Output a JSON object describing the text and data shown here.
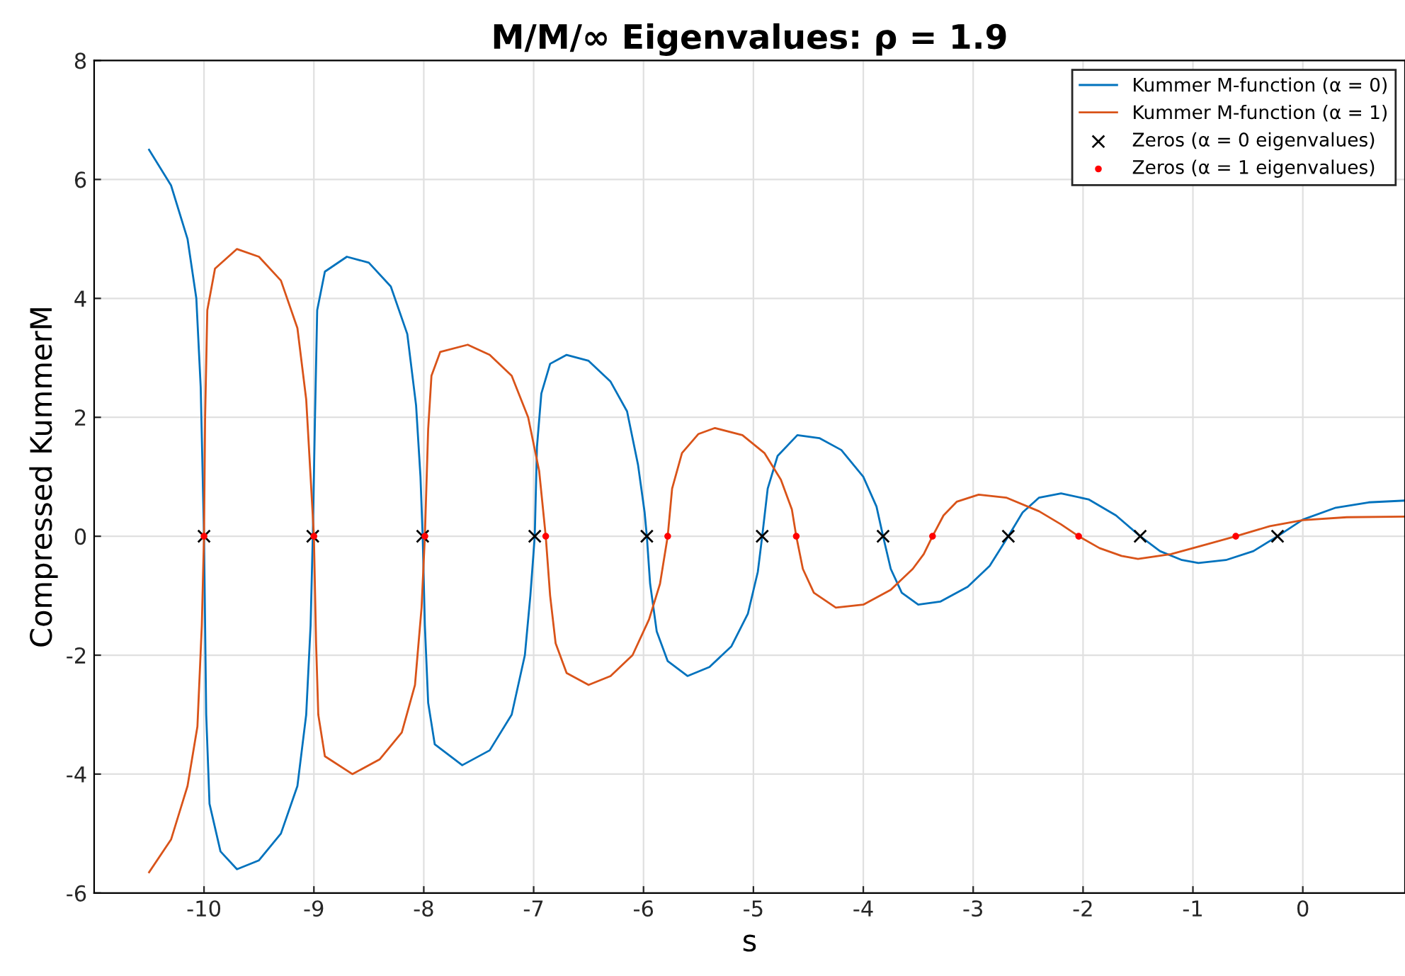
{
  "chart_data": {
    "type": "line",
    "title": "M/M/∞ Eigenvalues: ρ = 1.9",
    "xlabel": "s",
    "ylabel": "Compressed KummerM",
    "xlim": [
      -11,
      0.93
    ],
    "ylim": [
      -6,
      8
    ],
    "xticks": [
      -10,
      -9,
      -8,
      -7,
      -6,
      -5,
      -4,
      -3,
      -2,
      -1,
      0
    ],
    "yticks": [
      -6,
      -4,
      -2,
      0,
      2,
      4,
      6,
      8
    ],
    "grid": true,
    "legend": "top right",
    "series": [
      {
        "name": "Kummer M-function (α = 0)",
        "color": "#0072bd",
        "marker": "none",
        "x": [
          -10.5,
          -10.3,
          -10.15,
          -10.07,
          -10.03,
          -10,
          -9.98,
          -9.95,
          -9.85,
          -9.7,
          -9.5,
          -9.3,
          -9.15,
          -9.07,
          -9.03,
          -9.01,
          -8.99,
          -8.97,
          -8.9,
          -8.7,
          -8.5,
          -8.3,
          -8.15,
          -8.07,
          -8.03,
          -8.01,
          -7.99,
          -7.96,
          -7.9,
          -7.65,
          -7.4,
          -7.2,
          -7.08,
          -7.03,
          -6.99,
          -6.97,
          -6.93,
          -6.85,
          -6.7,
          -6.5,
          -6.3,
          -6.15,
          -6.05,
          -5.99,
          -5.97,
          -5.94,
          -5.88,
          -5.78,
          -5.6,
          -5.4,
          -5.2,
          -5.05,
          -4.96,
          -4.92,
          -4.87,
          -4.78,
          -4.6,
          -4.4,
          -4.2,
          -4.0,
          -3.88,
          -3.82,
          -3.75,
          -3.65,
          -3.5,
          -3.3,
          -3.05,
          -2.85,
          -2.68,
          -2.55,
          -2.4,
          -2.2,
          -1.95,
          -1.7,
          -1.48,
          -1.3,
          -1.1,
          -0.95,
          -0.7,
          -0.45,
          -0.23,
          0.0,
          0.3,
          0.6,
          0.93
        ],
        "values": [
          6.5,
          5.9,
          5.0,
          4.0,
          2.5,
          0,
          -3.0,
          -4.5,
          -5.3,
          -5.6,
          -5.45,
          -5.0,
          -4.2,
          -3.0,
          -1.5,
          0,
          2,
          3.8,
          4.45,
          4.7,
          4.6,
          4.2,
          3.4,
          2.2,
          1.0,
          0,
          -1.5,
          -2.8,
          -3.5,
          -3.85,
          -3.6,
          -3.0,
          -2.0,
          -1.0,
          0,
          1.5,
          2.4,
          2.9,
          3.05,
          2.95,
          2.6,
          2.1,
          1.2,
          0.4,
          0,
          -0.8,
          -1.6,
          -2.1,
          -2.35,
          -2.2,
          -1.85,
          -1.3,
          -0.6,
          0,
          0.8,
          1.35,
          1.7,
          1.65,
          1.45,
          1.0,
          0.5,
          0,
          -0.55,
          -0.95,
          -1.15,
          -1.1,
          -0.85,
          -0.5,
          0,
          0.4,
          0.65,
          0.72,
          0.62,
          0.35,
          0,
          -0.25,
          -0.4,
          -0.45,
          -0.4,
          -0.25,
          0,
          0.28,
          0.48,
          0.57,
          0.6
        ]
      },
      {
        "name": "Kummer M-function (α = 1)",
        "color": "#d95319",
        "marker": "none",
        "x": [
          -10.5,
          -10.3,
          -10.15,
          -10.06,
          -10.02,
          -10,
          -9.99,
          -9.97,
          -9.9,
          -9.7,
          -9.5,
          -9.3,
          -9.15,
          -9.07,
          -9.03,
          -9.0,
          -8.98,
          -8.96,
          -8.9,
          -8.65,
          -8.4,
          -8.2,
          -8.08,
          -8.02,
          -7.99,
          -7.96,
          -7.93,
          -7.85,
          -7.6,
          -7.4,
          -7.2,
          -7.05,
          -6.95,
          -6.89,
          -6.85,
          -6.8,
          -6.7,
          -6.5,
          -6.3,
          -6.1,
          -5.95,
          -5.85,
          -5.78,
          -5.74,
          -5.65,
          -5.5,
          -5.35,
          -5.1,
          -4.9,
          -4.75,
          -4.65,
          -4.61,
          -4.55,
          -4.45,
          -4.25,
          -4.0,
          -3.75,
          -3.55,
          -3.45,
          -3.37,
          -3.27,
          -3.15,
          -2.95,
          -2.7,
          -2.4,
          -2.2,
          -2.04,
          -1.85,
          -1.65,
          -1.5,
          -1.2,
          -0.9,
          -0.61,
          -0.3,
          0.0,
          0.4,
          0.93
        ],
        "values": [
          -5.65,
          -5.1,
          -4.2,
          -3.2,
          -1.5,
          0,
          2.0,
          3.8,
          4.5,
          4.83,
          4.7,
          4.3,
          3.5,
          2.3,
          1.0,
          0,
          -1.8,
          -3.0,
          -3.7,
          -4.0,
          -3.75,
          -3.3,
          -2.5,
          -1.2,
          0,
          1.8,
          2.7,
          3.1,
          3.22,
          3.05,
          2.7,
          2.0,
          1.1,
          0,
          -1.0,
          -1.8,
          -2.3,
          -2.5,
          -2.35,
          -2.0,
          -1.4,
          -0.8,
          0,
          0.8,
          1.4,
          1.72,
          1.82,
          1.7,
          1.4,
          0.95,
          0.45,
          0,
          -0.55,
          -0.95,
          -1.2,
          -1.15,
          -0.9,
          -0.55,
          -0.3,
          0,
          0.35,
          0.58,
          0.7,
          0.65,
          0.42,
          0.2,
          0,
          -0.2,
          -0.33,
          -0.38,
          -0.3,
          -0.15,
          0,
          0.17,
          0.27,
          0.32,
          0.33
        ]
      },
      {
        "name": "Zeros (α = 0 eigenvalues)",
        "type": "scatter",
        "color": "#000000",
        "marker": "cross",
        "x": [
          -10,
          -9.01,
          -8.01,
          -6.99,
          -5.97,
          -4.92,
          -3.82,
          -2.68,
          -1.48,
          -0.23
        ],
        "values": [
          0,
          0,
          0,
          0,
          0,
          0,
          0,
          0,
          0,
          0
        ]
      },
      {
        "name": "Zeros (α = 1 eigenvalues)",
        "type": "scatter",
        "color": "#ff0000",
        "marker": "circle",
        "x": [
          -10,
          -9.0,
          -7.99,
          -6.89,
          -5.78,
          -4.61,
          -3.37,
          -2.04,
          -0.61
        ],
        "values": [
          0,
          0,
          0,
          0,
          0,
          0,
          0,
          0,
          0
        ]
      }
    ]
  }
}
